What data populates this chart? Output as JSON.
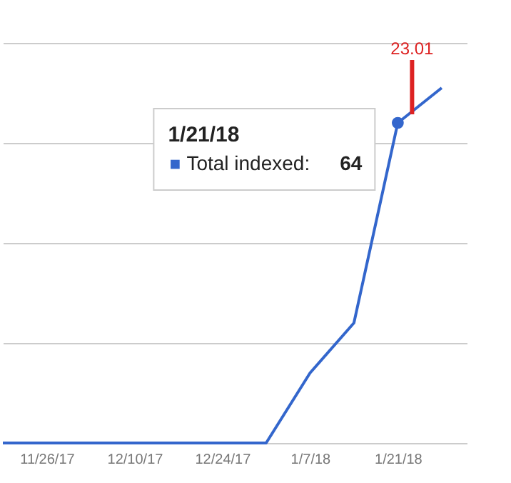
{
  "chart_data": {
    "type": "line",
    "x": [
      "2017-11-19",
      "2017-11-26",
      "2017-12-03",
      "2017-12-10",
      "2017-12-17",
      "2017-12-24",
      "2017-12-31",
      "2018-01-07",
      "2018-01-14",
      "2018-01-21",
      "2018-01-28"
    ],
    "series": [
      {
        "name": "Total indexed:",
        "color": "#3366cc",
        "values": [
          0,
          0,
          0,
          0,
          0,
          0,
          0,
          14,
          24,
          64,
          71
        ],
        "value_labels": [
          null,
          null,
          null,
          null,
          null,
          null,
          null,
          null,
          null,
          "64",
          null
        ]
      }
    ],
    "xlim": [
      "2017-11-19",
      "2018-02-01"
    ],
    "xticks": [
      {
        "value": "2017-11-26",
        "label": "11/26/17"
      },
      {
        "value": "2017-12-10",
        "label": "12/10/17"
      },
      {
        "value": "2017-12-24",
        "label": "12/24/17"
      },
      {
        "value": "2018-01-07",
        "label": "1/7/18"
      },
      {
        "value": "2018-01-21",
        "label": "1/21/18"
      }
    ],
    "ylim": [
      0,
      80
    ],
    "yticks": [
      {
        "value": 0,
        "label": null
      },
      {
        "value": 20,
        "label": null
      },
      {
        "value": 40,
        "label": null
      },
      {
        "value": 60,
        "label": null
      },
      {
        "value": 80,
        "label": null
      }
    ],
    "grid": "y",
    "marker": "none",
    "annotations": [
      "1/21/18",
      "23.01"
    ]
  }
}
